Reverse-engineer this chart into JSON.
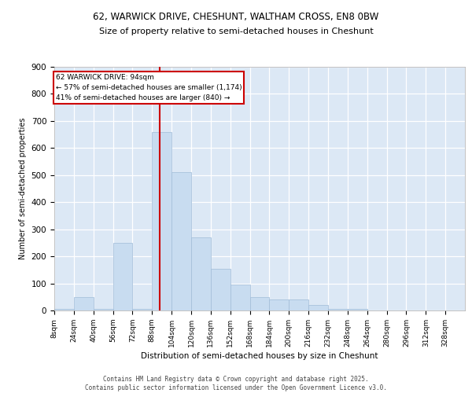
{
  "title1": "62, WARWICK DRIVE, CHESHUNT, WALTHAM CROSS, EN8 0BW",
  "title2": "Size of property relative to semi-detached houses in Cheshunt",
  "xlabel": "Distribution of semi-detached houses by size in Cheshunt",
  "ylabel": "Number of semi-detached properties",
  "bar_color": "#c8dcf0",
  "bar_edge_color": "#a0bcd8",
  "background_color": "#dce8f5",
  "grid_color": "#ffffff",
  "vline_x": 94,
  "vline_color": "#cc0000",
  "annotation_title": "62 WARWICK DRIVE: 94sqm",
  "annotation_line1": "← 57% of semi-detached houses are smaller (1,174)",
  "annotation_line2": "41% of semi-detached houses are larger (840) →",
  "annotation_box_color": "#cc0000",
  "footer_line1": "Contains HM Land Registry data © Crown copyright and database right 2025.",
  "footer_line2": "Contains public sector information licensed under the Open Government Licence v3.0.",
  "bin_edges": [
    8,
    24,
    40,
    56,
    72,
    88,
    104,
    120,
    136,
    152,
    168,
    184,
    200,
    216,
    232,
    248,
    264,
    280,
    296,
    312,
    328,
    344
  ],
  "bar_heights": [
    5,
    50,
    5,
    250,
    5,
    660,
    510,
    270,
    155,
    95,
    50,
    40,
    40,
    20,
    5,
    5,
    0,
    0,
    0,
    0,
    0
  ],
  "ylim": [
    0,
    900
  ],
  "yticks": [
    0,
    100,
    200,
    300,
    400,
    500,
    600,
    700,
    800,
    900
  ],
  "xtick_labels": [
    "8sqm",
    "24sqm",
    "40sqm",
    "56sqm",
    "72sqm",
    "88sqm",
    "104sqm",
    "120sqm",
    "136sqm",
    "152sqm",
    "168sqm",
    "184sqm",
    "200sqm",
    "216sqm",
    "232sqm",
    "248sqm",
    "264sqm",
    "280sqm",
    "296sqm",
    "312sqm",
    "328sqm"
  ]
}
